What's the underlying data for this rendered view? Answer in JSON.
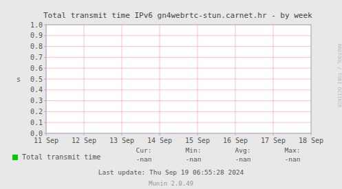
{
  "chart_data": {
    "type": "line",
    "title": "Total transmit time IPv6 gn4webrtc-stun.carnet.hr - by week",
    "y_label": "s",
    "categories": [
      "11 Sep",
      "12 Sep",
      "13 Sep",
      "14 Sep",
      "15 Sep",
      "16 Sep",
      "17 Sep",
      "18 Sep"
    ],
    "series": [
      {
        "name": "Total transmit time",
        "color": "#00cc00",
        "values": [
          null,
          null,
          null,
          null,
          null,
          null,
          null,
          null
        ]
      }
    ],
    "ylim": [
      0.0,
      1.0
    ],
    "yticks": [
      {
        "value": 0.0,
        "label": "0.0"
      },
      0.1,
      0.2,
      0.3,
      0.4,
      0.5,
      0.6,
      0.7,
      0.8,
      0.9,
      {
        "value": 1.0,
        "label": "1.0"
      }
    ],
    "grid": true,
    "legend": "bottom",
    "annotations": {
      "stats": [
        {
          "label": "Cur:",
          "value": "-nan"
        },
        {
          "label": "Min:",
          "value": "-nan"
        },
        {
          "label": "Avg:",
          "value": "-nan"
        },
        {
          "label": "Max:",
          "value": "-nan"
        }
      ],
      "last_update": "Last update: Thu Sep 19 06:55:28 2024",
      "footer": "Munin 2.0.49",
      "watermark": "RRDTOOL / TOBI OETIKER"
    }
  }
}
